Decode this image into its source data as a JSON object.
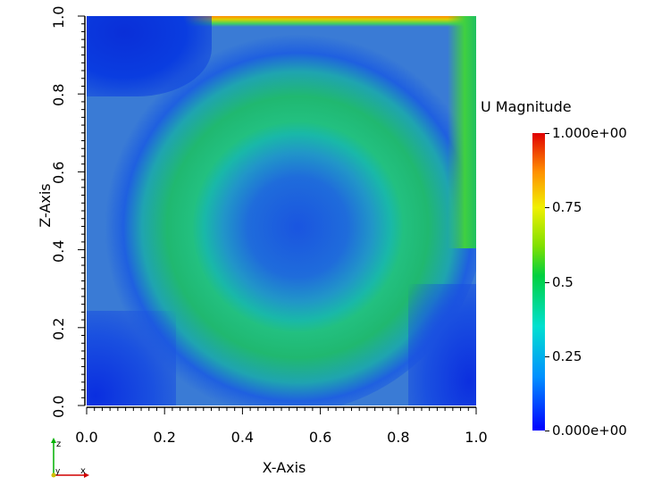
{
  "chart_data": {
    "type": "heatmap",
    "title": "",
    "xlabel": "X-Axis",
    "ylabel": "Z-Axis",
    "xlim": [
      0.0,
      1.0
    ],
    "ylim": [
      0.0,
      1.0
    ],
    "x_ticks": [
      "0.0",
      "0.2",
      "0.4",
      "0.6",
      "0.8",
      "1.0"
    ],
    "y_ticks": [
      "0.0",
      "0.2",
      "0.4",
      "0.6",
      "0.8",
      "1.0"
    ],
    "colorbar": {
      "title": "U Magnitude",
      "range": [
        0.0,
        1.0
      ],
      "labels": [
        {
          "text": "1.000e+00",
          "value": 1.0
        },
        {
          "text": "0.75",
          "value": 0.75
        },
        {
          "text": "0.5",
          "value": 0.5
        },
        {
          "text": "0.25",
          "value": 0.25
        },
        {
          "text": "0.000e+00",
          "value": 0.0
        }
      ],
      "colors": [
        "#0000ff",
        "#00e0d0",
        "#00d040",
        "#f0f000",
        "#e00000"
      ]
    },
    "field_description": "lid-driven cavity velocity magnitude; max near top lid, vortex core near (0.53, 0.53)"
  },
  "orientation_axes": {
    "z_label": "z",
    "y_label": "y",
    "x_label": "x",
    "colors": {
      "z": "#00b000",
      "y": "#d0c000",
      "x": "#d00000"
    }
  }
}
